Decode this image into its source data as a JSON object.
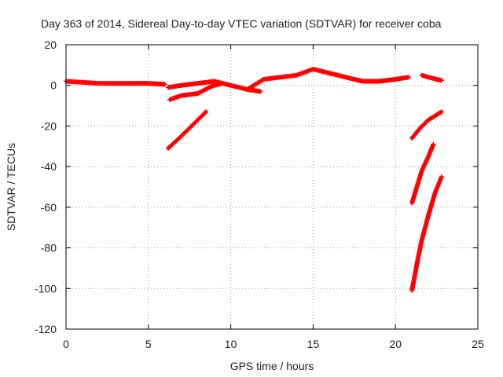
{
  "chart_data": {
    "type": "scatter",
    "title": "Day 363 of 2014, Sidereal Day-to-day VTEC variation (SDTVAR) for receiver coba",
    "xlabel": "GPS time / hours",
    "ylabel": "SDTVAR / TECUs",
    "xlim": [
      0,
      25
    ],
    "ylim": [
      -120,
      20
    ],
    "xticks": [
      0,
      5,
      10,
      15,
      20,
      25
    ],
    "yticks": [
      20,
      0,
      -20,
      -40,
      -60,
      -80,
      -100,
      -120
    ],
    "grid": true,
    "marker_color": "#ff0000",
    "series": [
      {
        "x": [
          0,
          1,
          2,
          3,
          4,
          5,
          6
        ],
        "y": [
          2,
          1.5,
          1,
          1,
          1,
          1,
          0.5
        ]
      },
      {
        "x": [
          6.2,
          7,
          8,
          9,
          10,
          11,
          11.8
        ],
        "y": [
          -1,
          0,
          1,
          2,
          0,
          -2,
          -3
        ]
      },
      {
        "x": [
          6.3,
          7,
          8,
          8.7,
          9,
          9.5
        ],
        "y": [
          -7,
          -5,
          -4,
          -1,
          0,
          1
        ]
      },
      {
        "x": [
          11,
          12,
          13,
          14,
          15,
          16,
          17,
          18,
          19,
          20,
          20.8
        ],
        "y": [
          -2,
          3,
          4,
          5,
          8,
          6,
          4,
          2,
          2,
          3,
          4
        ]
      },
      {
        "x": [
          6.2,
          7,
          8,
          8.5
        ],
        "y": [
          -31,
          -25,
          -17,
          -13
        ]
      },
      {
        "x": [
          21.6,
          22,
          22.5,
          22.8
        ],
        "y": [
          5,
          4,
          3,
          2.5
        ]
      },
      {
        "x": [
          21,
          21.5,
          22,
          22.5,
          22.8
        ],
        "y": [
          -26,
          -21,
          -17,
          -14.5,
          -13
        ]
      },
      {
        "x": [
          21,
          21.3,
          21.6,
          22,
          22.3
        ],
        "y": [
          -58,
          -50,
          -42,
          -35,
          -29
        ]
      },
      {
        "x": [
          21,
          21.3,
          21.6,
          22,
          22.4,
          22.8
        ],
        "y": [
          -101,
          -88,
          -76,
          -64,
          -53,
          -45
        ]
      }
    ]
  }
}
